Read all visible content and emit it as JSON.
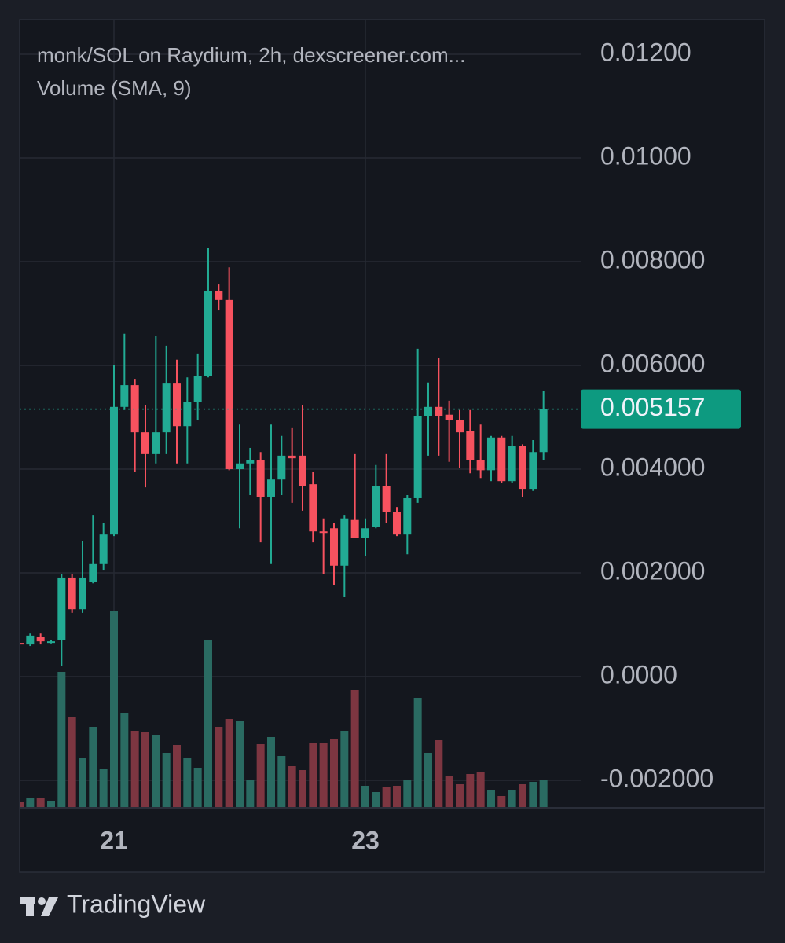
{
  "chart_data": {
    "type": "candlestick",
    "title": "monk/SOL on Raydium, 2h, dexscreener.com...",
    "subtitle": "Volume (SMA, 9)",
    "categories": [
      null,
      null,
      null,
      null,
      null,
      null,
      null,
      null,
      null,
      "21",
      null,
      null,
      null,
      null,
      null,
      null,
      null,
      null,
      null,
      null,
      null,
      null,
      null,
      null,
      null,
      null,
      null,
      null,
      null,
      null,
      null,
      null,
      null,
      "23",
      null,
      null,
      null,
      null,
      null,
      null,
      null,
      null,
      null,
      null,
      null,
      null,
      null,
      null,
      null,
      null,
      null
    ],
    "open": [
      0.00065,
      0.00062,
      0.00077,
      0.00067,
      0.0007,
      0.00191,
      0.0013,
      0.00183,
      0.00217,
      0.00274,
      0.0052,
      0.00562,
      0.00471,
      0.00429,
      0.00471,
      0.00565,
      0.00483,
      0.00529,
      0.0058,
      0.00744,
      0.00726,
      0.004,
      0.00411,
      0.00417,
      0.00347,
      0.0038,
      0.00426,
      0.00426,
      0.00371,
      0.0028,
      0.00286,
      0.00214,
      0.00302,
      0.00268,
      0.00289,
      0.00368,
      0.00317,
      0.00274,
      0.00344,
      0.00502,
      0.0052,
      0.00505,
      0.00494,
      0.00474,
      0.00418,
      0.00398,
      0.00461,
      0.00377,
      0.00444,
      0.00362,
      0.00433
    ],
    "high": [
      0.00068,
      0.00083,
      0.00083,
      0.00071,
      0.00198,
      0.00198,
      0.00262,
      0.00312,
      0.00297,
      0.006,
      0.00661,
      0.00574,
      0.00524,
      0.00656,
      0.00638,
      0.00611,
      0.00577,
      0.00623,
      0.00827,
      0.00756,
      0.00789,
      0.00486,
      0.00441,
      0.00433,
      0.00486,
      0.00464,
      0.00479,
      0.00524,
      0.00395,
      0.00305,
      0.00297,
      0.00312,
      0.00429,
      0.00305,
      0.00408,
      0.00429,
      0.00327,
      0.0035,
      0.00632,
      0.00567,
      0.00615,
      0.00532,
      0.00514,
      0.00514,
      0.00486,
      0.00464,
      0.00464,
      0.00464,
      0.00448,
      0.00456,
      0.0055
    ],
    "low": [
      0.00059,
      0.00059,
      0.00062,
      0.00064,
      0.0002,
      0.00123,
      0.00123,
      0.0018,
      0.00206,
      0.00271,
      0.00514,
      0.00395,
      0.00365,
      0.00411,
      0.00429,
      0.00411,
      0.00411,
      0.00494,
      0.00577,
      0.00706,
      0.00398,
      0.00286,
      0.0035,
      0.00259,
      0.00217,
      0.0035,
      0.00335,
      0.0032,
      0.00259,
      0.00198,
      0.00176,
      0.00153,
      0.00267,
      0.00232,
      0.00286,
      0.00297,
      0.00271,
      0.00236,
      0.00335,
      0.00426,
      0.00426,
      0.00414,
      0.00403,
      0.00392,
      0.00383,
      0.00377,
      0.00373,
      0.00373,
      0.00347,
      0.00358,
      0.00418
    ],
    "close": [
      0.00062,
      0.00079,
      0.00068,
      0.00068,
      0.00191,
      0.0013,
      0.00191,
      0.00217,
      0.00274,
      0.0052,
      0.00562,
      0.00471,
      0.00429,
      0.00471,
      0.00565,
      0.00483,
      0.00529,
      0.0058,
      0.00744,
      0.00726,
      0.004,
      0.00411,
      0.00417,
      0.00347,
      0.0038,
      0.00426,
      0.00421,
      0.00368,
      0.0028,
      0.00277,
      0.00214,
      0.00305,
      0.00268,
      0.00286,
      0.00368,
      0.00317,
      0.00274,
      0.00344,
      0.00502,
      0.0052,
      0.00502,
      0.00494,
      0.00471,
      0.00418,
      0.00398,
      0.00461,
      0.00377,
      0.00444,
      0.00362,
      0.00433,
      0.005157
    ],
    "volume": [
      7,
      12,
      12,
      8,
      172,
      115,
      62,
      102,
      49,
      249,
      120,
      97,
      95,
      92,
      69,
      79,
      62,
      50,
      212,
      102,
      112,
      109,
      35,
      80,
      89,
      65,
      52,
      47,
      82,
      82,
      87,
      97,
      149,
      27,
      19,
      25,
      27,
      35,
      139,
      69,
      85,
      39,
      29,
      42,
      44,
      22,
      14,
      22,
      29,
      32,
      34
    ],
    "up_color": "#22ab94",
    "down_color": "#f7525f",
    "volume_up_color": "#2a6b62",
    "volume_down_color": "#7d3641",
    "ylim": [
      -0.002515,
      0.012667
    ],
    "yticks": [
      {
        "value": -0.002,
        "label": "-0.002000"
      },
      {
        "value": 0,
        "label": "0.0000"
      },
      {
        "value": 0.002,
        "label": "0.002000"
      },
      {
        "value": 0.004,
        "label": "0.004000"
      },
      {
        "value": 0.006,
        "label": "0.006000"
      },
      {
        "value": 0.008,
        "label": "0.008000"
      },
      {
        "value": 0.01,
        "label": "0.01000"
      },
      {
        "value": 0.012,
        "label": "0.01200"
      }
    ],
    "grid": true
  },
  "footer": {
    "brand": "TradingView"
  }
}
